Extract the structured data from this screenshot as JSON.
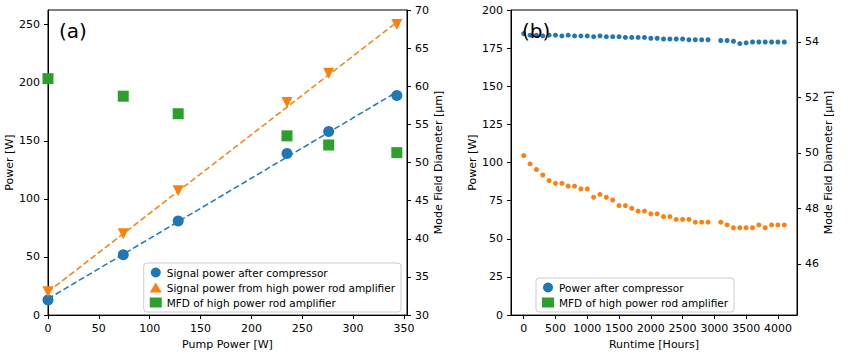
{
  "chart_data": [
    {
      "type": "scatter",
      "annotation": "(a)",
      "xlabel": "Pump Power [W]",
      "ylabel": "Power [W]",
      "y2label": "Mode Field Diameter [µm]",
      "xlim": [
        0,
        353
      ],
      "xticks": [
        0,
        50,
        100,
        150,
        200,
        250,
        300,
        350
      ],
      "ylim": [
        0,
        262.5
      ],
      "yticks": [
        0,
        50,
        100,
        150,
        200,
        250
      ],
      "y2lim": [
        30,
        70
      ],
      "y2ticks": [
        30,
        35,
        40,
        45,
        50,
        55,
        60,
        65,
        70
      ],
      "grid": false,
      "legend": "lower right",
      "series": [
        {
          "name": "Signal power after compressor",
          "color": "#1f77b4",
          "marker": "circle",
          "x": [
            0,
            74,
            128,
            235,
            276,
            343
          ],
          "values": [
            13,
            52,
            81,
            139,
            158,
            189
          ]
        },
        {
          "name": "Signal power from high power rod amplifier",
          "color": "#ff7f0e",
          "marker": "triangle_down",
          "x": [
            0,
            74,
            128,
            235,
            276,
            343
          ],
          "values": [
            20,
            70,
            107,
            183,
            208,
            250
          ]
        },
        {
          "name": "MFD of high power rod amplifier",
          "color": "#2ca02c",
          "marker": "square",
          "axis": "y2",
          "x": [
            0,
            74,
            128,
            235,
            276,
            343
          ],
          "values": [
            61,
            58.7,
            56.4,
            53.5,
            52.3,
            51.3
          ]
        },
        {
          "type": "line",
          "line_style": "dashed",
          "color": "#1f77b4",
          "x": [
            0,
            343
          ],
          "values": [
            14,
            192
          ]
        },
        {
          "type": "line",
          "line_style": "dashed",
          "color": "#ff7f0e",
          "x": [
            0,
            343
          ],
          "values": [
            20,
            252
          ]
        }
      ]
    },
    {
      "type": "scatter",
      "annotation": "(b)",
      "xlabel": "Runtime [Hours]",
      "ylabel": "Power [W]",
      "y2label": "Mode Field Diameter [µm]",
      "xlim": [
        -200,
        4300
      ],
      "xticks": [
        0,
        500,
        1000,
        1500,
        2000,
        2500,
        3000,
        3500,
        4000
      ],
      "ylim": [
        0,
        200
      ],
      "yticks": [
        0,
        25,
        50,
        75,
        100,
        125,
        150,
        175,
        200
      ],
      "y2lim": [
        44.15,
        55.15
      ],
      "y2ticks": [
        46,
        48,
        50,
        52,
        54
      ],
      "grid": false,
      "legend": "lower center",
      "series": [
        {
          "name": "Power after compressor",
          "color": "#1f77b4",
          "marker": "circle",
          "x": [
            0,
            100,
            200,
            300,
            400,
            500,
            600,
            700,
            800,
            900,
            1000,
            1100,
            1200,
            1300,
            1400,
            1500,
            1600,
            1700,
            1800,
            1900,
            2000,
            2100,
            2200,
            2300,
            2400,
            2500,
            2600,
            2700,
            2800,
            2900,
            3100,
            3200,
            3300,
            3400,
            3500,
            3600,
            3700,
            3800,
            3900,
            4000,
            4100
          ],
          "values": [
            184.5,
            183.5,
            183.5,
            183,
            183.5,
            183.5,
            183,
            183.5,
            183,
            183,
            183,
            182.5,
            183,
            182.5,
            182.5,
            182.5,
            182,
            182,
            182,
            182,
            181.5,
            181.5,
            181,
            181,
            181,
            181,
            180.5,
            180.5,
            180.5,
            180.5,
            180,
            180,
            179.5,
            178,
            178.5,
            179,
            179,
            179,
            179,
            179,
            179
          ]
        },
        {
          "name": "MFD of high power rod amplifier",
          "color": "#ff7f0e",
          "marker": "circle",
          "axis": "y2",
          "x": [
            0,
            100,
            200,
            300,
            400,
            500,
            600,
            700,
            800,
            900,
            1000,
            1100,
            1200,
            1300,
            1400,
            1500,
            1600,
            1700,
            1800,
            1900,
            2000,
            2100,
            2200,
            2300,
            2400,
            2500,
            2600,
            2700,
            2800,
            2900,
            3100,
            3200,
            3300,
            3400,
            3500,
            3600,
            3700,
            3800,
            3900,
            4000,
            4100
          ],
          "values": [
            49.9,
            49.6,
            49.4,
            49.2,
            49.0,
            48.9,
            48.9,
            48.8,
            48.8,
            48.7,
            48.7,
            48.4,
            48.5,
            48.4,
            48.3,
            48.1,
            48.1,
            48.0,
            47.9,
            47.9,
            47.8,
            47.8,
            47.7,
            47.7,
            47.6,
            47.6,
            47.6,
            47.5,
            47.5,
            47.5,
            47.5,
            47.4,
            47.3,
            47.3,
            47.3,
            47.3,
            47.4,
            47.3,
            47.4,
            47.4,
            47.4
          ]
        }
      ]
    }
  ]
}
